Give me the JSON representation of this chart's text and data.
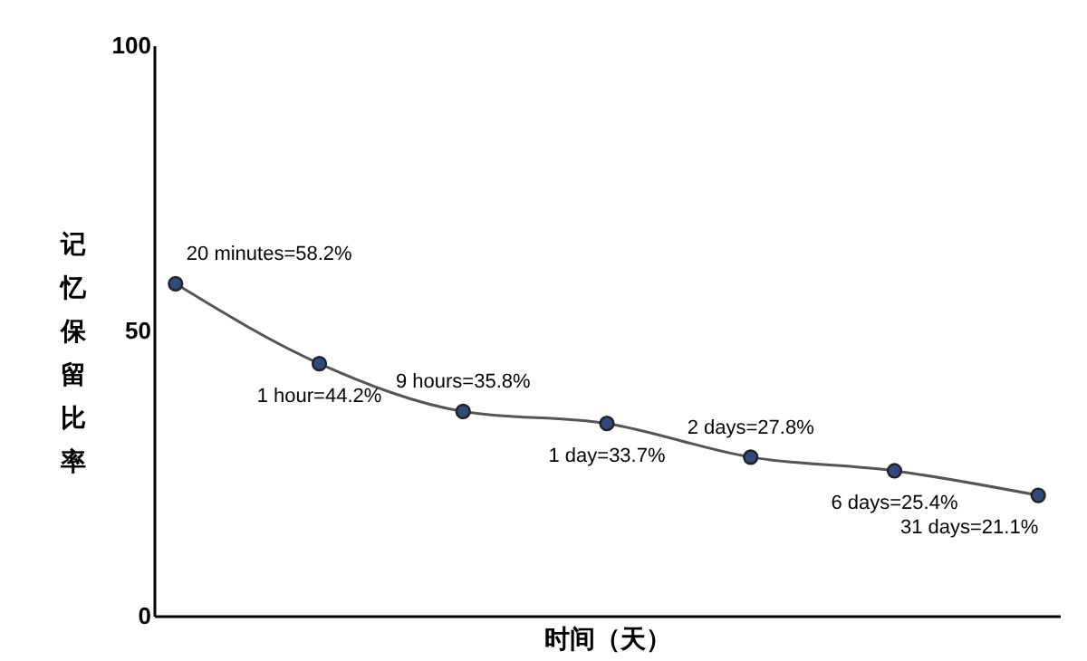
{
  "chart_data": {
    "type": "line",
    "xlabel": "时间（天）",
    "ylabel": "记忆保留比率",
    "categories": [
      null,
      null,
      null,
      null,
      null,
      null,
      null
    ],
    "series": [
      {
        "color": "#555555",
        "values": [
          58.2,
          44.2,
          35.8,
          33.7,
          27.8,
          25.4,
          21.1
        ],
        "value_labels": [
          "20 minutes=58.2%",
          "1 hour=44.2%",
          "9 hours=35.8%",
          "1 day=33.7%",
          "2 days=27.8%",
          "6 days=25.4%",
          "31 days=21.1%"
        ]
      }
    ],
    "ylim": [
      0,
      100
    ],
    "yticks": [
      0,
      50,
      100
    ],
    "grid": false,
    "legend": false,
    "marker": "circle",
    "line_style": "solid"
  }
}
